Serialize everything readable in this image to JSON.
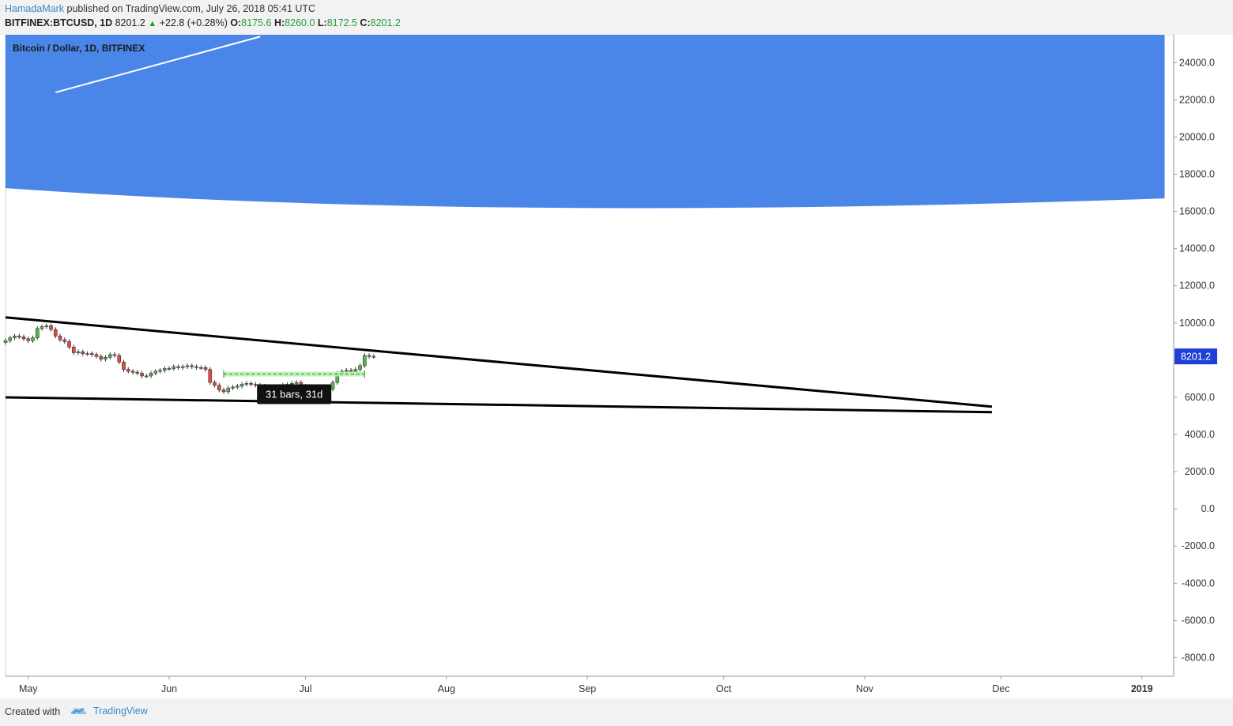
{
  "header": {
    "author": "HamadaMark",
    "published": "published on TradingView.com, July 26, 2018 05:41 UTC",
    "symbol": "BITFINEX:BTCUSD, 1D",
    "last": "8201.2",
    "change": "+22.8 (+0.28%)",
    "o_label": "O:",
    "o_value": "8175.6",
    "h_label": "H:",
    "h_value": "8260.0",
    "l_label": "L:",
    "l_value": "8172.5",
    "c_label": "C:",
    "c_value": "8201.2"
  },
  "footer": {
    "created_with": "Created with",
    "brand": "TradingView"
  },
  "colors": {
    "up": "#53b853",
    "down": "#e04a44",
    "zone": "#4a86e8",
    "price_tag": "#1f3fd6"
  },
  "chart_data": {
    "type": "candlestick",
    "title": "Bitcoin / Dollar, 1D, BITFINEX",
    "ylim": [
      -9000,
      25500
    ],
    "y_ticks": [
      24000,
      22000,
      20000,
      18000,
      16000,
      14000,
      12000,
      10000,
      8000,
      6000,
      4000,
      2000,
      0,
      -2000,
      -4000,
      -6000,
      -8000
    ],
    "y_tick_labels": [
      "24000.0",
      "22000.0",
      "20000.0",
      "18000.0",
      "16000.0",
      "14000.0",
      "12000.0",
      "10000.0",
      "8000.0",
      "6000.0",
      "4000.0",
      "2000.0",
      "0.0",
      "-2000.0",
      "-4000.0",
      "-6000.0",
      "-8000.0"
    ],
    "xlim": [
      "2018-04-26",
      "2019-01-08"
    ],
    "x_ticks": [
      {
        "date": "2018-05-01",
        "label": "May"
      },
      {
        "date": "2018-06-01",
        "label": "Jun"
      },
      {
        "date": "2018-07-01",
        "label": "Jul"
      },
      {
        "date": "2018-08-01",
        "label": "Aug"
      },
      {
        "date": "2018-09-01",
        "label": "Sep"
      },
      {
        "date": "2018-10-01",
        "label": "Oct"
      },
      {
        "date": "2018-11-01",
        "label": "Nov"
      },
      {
        "date": "2018-12-01",
        "label": "Dec"
      },
      {
        "date": "2019-01-01",
        "label": "2019"
      }
    ],
    "last_price_label": "8201.2",
    "last_price": 8201.2,
    "close_series": {
      "start": "2018-04-26",
      "values": [
        9050,
        9200,
        9300,
        9250,
        9150,
        9050,
        9200,
        9700,
        9800,
        9850,
        9650,
        9300,
        9100,
        9000,
        8700,
        8400,
        8450,
        8350,
        8350,
        8300,
        8200,
        8050,
        8150,
        8300,
        8250,
        7900,
        7500,
        7400,
        7350,
        7300,
        7150,
        7150,
        7300,
        7400,
        7450,
        7550,
        7550,
        7650,
        7600,
        7650,
        7700,
        7650,
        7600,
        7600,
        7500,
        6800,
        6650,
        6400,
        6300,
        6500,
        6550,
        6600,
        6700,
        6750,
        6700,
        6650,
        6600,
        6550,
        6500,
        6450,
        6550,
        6650,
        6700,
        6750,
        6800,
        6600,
        6500,
        6350,
        6300,
        6250,
        6350,
        6450,
        6800,
        7300,
        7400,
        7450,
        7400,
        7500,
        7700,
        8250,
        8200,
        8201.2
      ]
    },
    "zone_top_edge": [
      {
        "date": "2018-04-26",
        "y": 17250
      },
      {
        "date": "2018-08-10",
        "y": 16200
      },
      {
        "date": "2019-01-06",
        "y": 16700
      }
    ],
    "trendlines": [
      {
        "from": {
          "date": "2018-04-26",
          "y": 10300
        },
        "to": {
          "date": "2018-11-29",
          "y": 5500
        }
      },
      {
        "from": {
          "date": "2018-04-26",
          "y": 6000
        },
        "to": {
          "date": "2018-11-29",
          "y": 5200
        }
      },
      {
        "from": {
          "date": "2018-05-07",
          "y": 22400
        },
        "to": {
          "date": "2018-06-21",
          "y": 25400
        }
      }
    ],
    "range_measure": {
      "from": "2018-06-13",
      "to": "2018-07-14",
      "y": 7250,
      "label": "31 bars, 31d"
    }
  }
}
